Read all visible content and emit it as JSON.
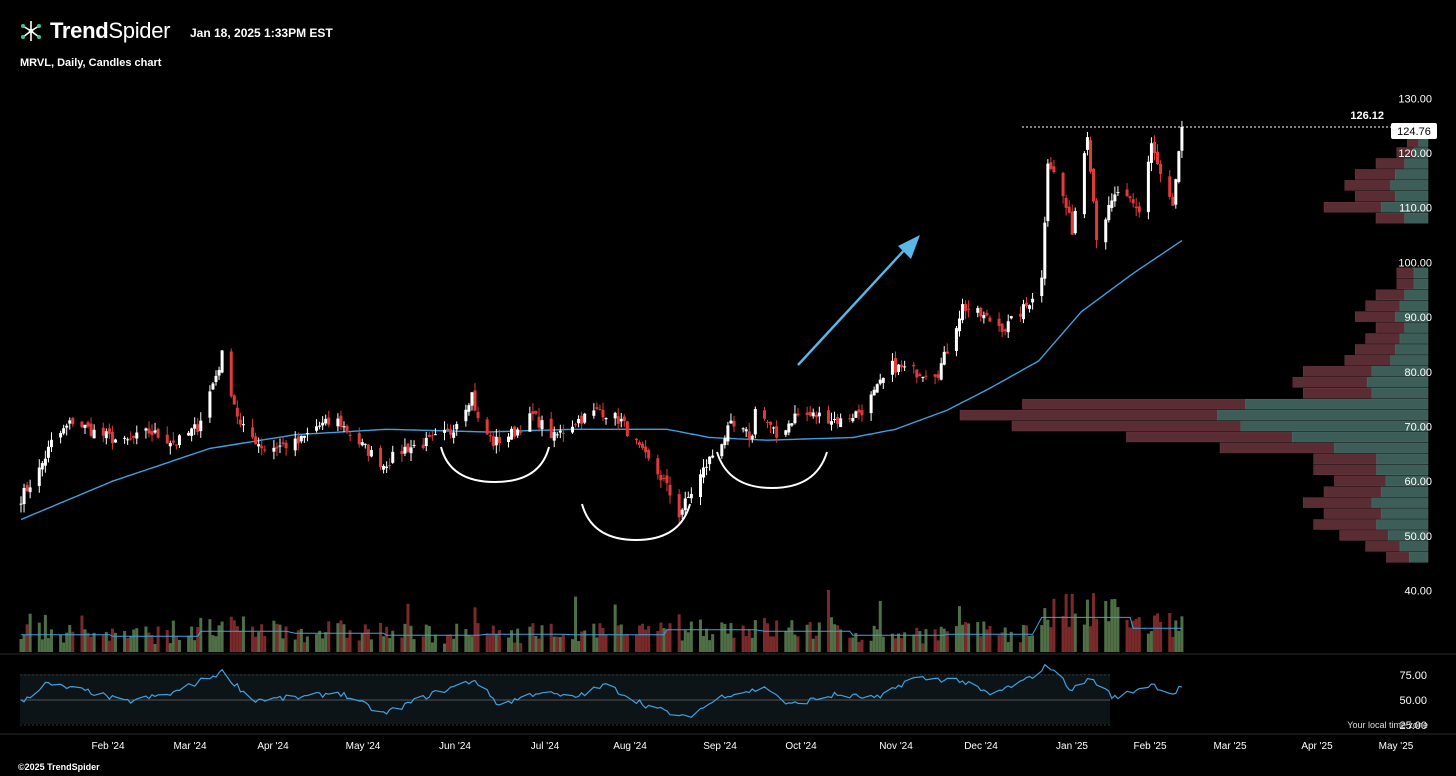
{
  "header": {
    "brand_part1": "Trend",
    "brand_part2": "Spider",
    "timestamp": "Jan 18, 2025 1:33PM EST",
    "subtitle": "MRVL, Daily, Candles chart"
  },
  "footer": {
    "copyright": "©2025 TrendSpider",
    "timezone_note": "Your local time zone"
  },
  "colors": {
    "background": "#000000",
    "up": "#ffffff",
    "down": "#e03a3a",
    "ma": "#3fa0e0",
    "arrow": "#5ab8e8",
    "vp_green": "#3d5e58",
    "vp_red": "#5a2c34",
    "vol_green": "#4f6f45",
    "vol_red": "#7a2a2a"
  },
  "chart_data": [
    {
      "type": "candlestick",
      "title": "MRVL, Daily, Candles chart",
      "x_tick_labels": [
        "Feb '24",
        "Mar '24",
        "Apr '24",
        "May '24",
        "Jun '24",
        "Jul '24",
        "Aug '24",
        "Sep '24",
        "Oct '24",
        "Nov '24",
        "Dec '24",
        "Jan '25",
        "Feb '25",
        "Mar '25",
        "Apr '25",
        "May '25"
      ],
      "y_tick_labels": [
        "130.00",
        "120.00",
        "110.00",
        "100.00",
        "90.00",
        "80.00",
        "70.00",
        "60.00",
        "50.00",
        "40.00"
      ],
      "ylim": [
        37,
        136
      ],
      "annotations": {
        "high_label": "126.12",
        "last_price": "124.76"
      },
      "anchors": [
        [
          "2024-01-02",
          57
        ],
        [
          "2024-01-08",
          62
        ],
        [
          "2024-01-12",
          67
        ],
        [
          "2024-01-19",
          71
        ],
        [
          "2024-01-26",
          69
        ],
        [
          "2024-02-05",
          67
        ],
        [
          "2024-02-13",
          69
        ],
        [
          "2024-02-22",
          67
        ],
        [
          "2024-02-29",
          70
        ],
        [
          "2024-03-07",
          81
        ],
        [
          "2024-03-08",
          83
        ],
        [
          "2024-03-14",
          70
        ],
        [
          "2024-03-22",
          66
        ],
        [
          "2024-04-02",
          67
        ],
        [
          "2024-04-08",
          70
        ],
        [
          "2024-04-15",
          71
        ],
        [
          "2024-04-22",
          67
        ],
        [
          "2024-04-30",
          63
        ],
        [
          "2024-05-07",
          66
        ],
        [
          "2024-05-14",
          67
        ],
        [
          "2024-05-22",
          69
        ],
        [
          "2024-05-29",
          76
        ],
        [
          "2024-05-31",
          71
        ],
        [
          "2024-06-05",
          67
        ],
        [
          "2024-06-12",
          69
        ],
        [
          "2024-06-18",
          72
        ],
        [
          "2024-06-25",
          68
        ],
        [
          "2024-07-02",
          71
        ],
        [
          "2024-07-10",
          73
        ],
        [
          "2024-07-17",
          71
        ],
        [
          "2024-07-24",
          65
        ],
        [
          "2024-07-31",
          60
        ],
        [
          "2024-08-05",
          54
        ],
        [
          "2024-08-09",
          58
        ],
        [
          "2024-08-15",
          64
        ],
        [
          "2024-08-22",
          70
        ],
        [
          "2024-08-29",
          68
        ],
        [
          "2024-08-30",
          74
        ],
        [
          "2024-09-06",
          68
        ],
        [
          "2024-09-12",
          72
        ],
        [
          "2024-09-20",
          72
        ],
        [
          "2024-09-27",
          71
        ],
        [
          "2024-10-04",
          73
        ],
        [
          "2024-10-08",
          76
        ],
        [
          "2024-10-14",
          81
        ],
        [
          "2024-10-22",
          80
        ],
        [
          "2024-10-29",
          80
        ],
        [
          "2024-11-01",
          84
        ],
        [
          "2024-11-06",
          92
        ],
        [
          "2024-11-13",
          90
        ],
        [
          "2024-11-20",
          88
        ],
        [
          "2024-11-27",
          92
        ],
        [
          "2024-12-02",
          97
        ],
        [
          "2024-12-04",
          119
        ],
        [
          "2024-12-09",
          112
        ],
        [
          "2024-12-12",
          106
        ],
        [
          "2024-12-17",
          124
        ],
        [
          "2024-12-20",
          105
        ],
        [
          "2024-12-27",
          113
        ],
        [
          "2025-01-03",
          109
        ],
        [
          "2025-01-07",
          122
        ],
        [
          "2025-01-10",
          116
        ],
        [
          "2025-01-14",
          110
        ],
        [
          "2025-01-17",
          124.76
        ]
      ],
      "ma_anchors": [
        [
          "2024-01-02",
          53
        ],
        [
          "2024-02-01",
          60
        ],
        [
          "2024-03-04",
          66
        ],
        [
          "2024-04-01",
          68.5
        ],
        [
          "2024-05-01",
          69.5
        ],
        [
          "2024-06-03",
          69
        ],
        [
          "2024-07-01",
          69.5
        ],
        [
          "2024-08-01",
          69.5
        ],
        [
          "2024-08-15",
          68
        ],
        [
          "2024-09-03",
          67.5
        ],
        [
          "2024-10-01",
          68
        ],
        [
          "2024-10-15",
          69.5
        ],
        [
          "2024-11-01",
          73
        ],
        [
          "2024-11-15",
          77
        ],
        [
          "2024-12-01",
          82
        ],
        [
          "2024-12-15",
          91
        ],
        [
          "2025-01-01",
          98
        ],
        [
          "2025-01-17",
          104
        ]
      ]
    },
    {
      "type": "bar",
      "title": "Volume profile",
      "price_levels": [
        46,
        48,
        50,
        52,
        54,
        56,
        58,
        60,
        62,
        64,
        66,
        68,
        70,
        72,
        74,
        76,
        78,
        80,
        82,
        84,
        86,
        88,
        90,
        92,
        94,
        96,
        98,
        108,
        110,
        112,
        114,
        116,
        118,
        120,
        122
      ],
      "volume": [
        8,
        12,
        17,
        22,
        20,
        24,
        20,
        18,
        22,
        22,
        40,
        58,
        80,
        90,
        78,
        24,
        26,
        24,
        16,
        14,
        12,
        10,
        14,
        12,
        10,
        6,
        6,
        10,
        20,
        14,
        16,
        14,
        10,
        6,
        4
      ]
    },
    {
      "type": "bar",
      "title": "Volume",
      "dates": [
        "2024-01",
        "2024-02",
        "2024-03",
        "2024-04",
        "2024-05",
        "2024-06",
        "2024-07",
        "2024-08",
        "2024-09",
        "2024-10",
        "2024-11",
        "2024-12",
        "2025-01"
      ],
      "values": [
        0.35,
        0.32,
        0.42,
        0.38,
        0.34,
        0.36,
        0.35,
        0.45,
        0.42,
        0.34,
        0.36,
        0.7,
        0.48
      ]
    },
    {
      "type": "line",
      "title": "RSI",
      "y_tick_labels": [
        "75.00",
        "50.00",
        "25.00"
      ],
      "ylim": [
        20,
        85
      ],
      "anchors": [
        [
          "2024-01-02",
          48
        ],
        [
          "2024-01-10",
          66
        ],
        [
          "2024-01-25",
          58
        ],
        [
          "2024-02-05",
          48
        ],
        [
          "2024-02-20",
          56
        ],
        [
          "2024-03-08",
          78
        ],
        [
          "2024-03-18",
          50
        ],
        [
          "2024-04-05",
          53
        ],
        [
          "2024-04-15",
          58
        ],
        [
          "2024-04-30",
          36
        ],
        [
          "2024-05-15",
          55
        ],
        [
          "2024-05-30",
          70
        ],
        [
          "2024-06-07",
          45
        ],
        [
          "2024-06-20",
          58
        ],
        [
          "2024-07-01",
          52
        ],
        [
          "2024-07-12",
          65
        ],
        [
          "2024-07-25",
          45
        ],
        [
          "2024-08-07",
          32
        ],
        [
          "2024-08-20",
          55
        ],
        [
          "2024-09-03",
          62
        ],
        [
          "2024-09-10",
          45
        ],
        [
          "2024-09-25",
          55
        ],
        [
          "2024-10-10",
          52
        ],
        [
          "2024-10-20",
          72
        ],
        [
          "2024-11-05",
          70
        ],
        [
          "2024-11-15",
          55
        ],
        [
          "2024-11-27",
          70
        ],
        [
          "2024-12-04",
          85
        ],
        [
          "2024-12-12",
          60
        ],
        [
          "2024-12-18",
          72
        ],
        [
          "2024-12-26",
          52
        ],
        [
          "2025-01-07",
          66
        ],
        [
          "2025-01-14",
          56
        ],
        [
          "2025-01-17",
          64
        ]
      ]
    }
  ]
}
